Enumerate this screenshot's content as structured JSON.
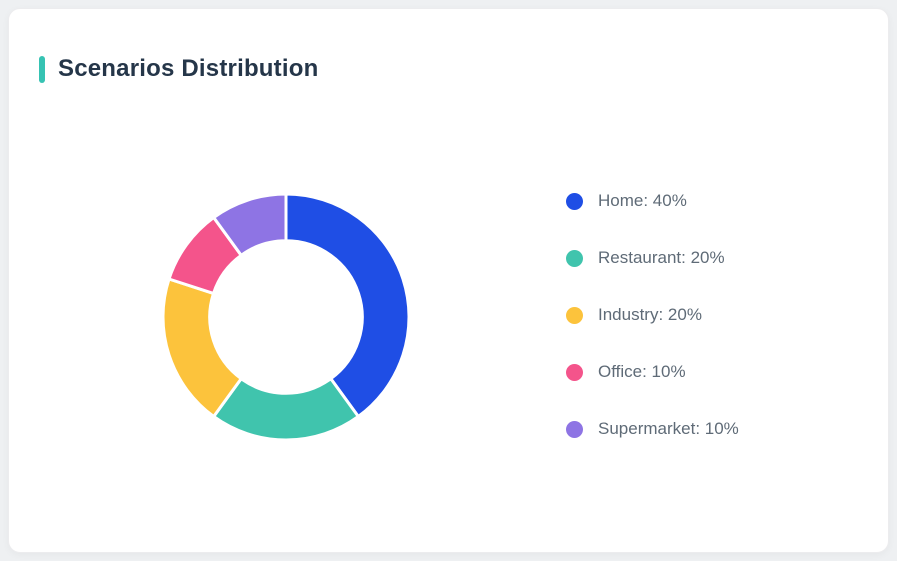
{
  "card": {
    "title": "Scenarios Distribution",
    "accent_color": "#36c3b3"
  },
  "chart_data": {
    "type": "pie",
    "subtype": "donut",
    "title": "Scenarios Distribution",
    "categories": [
      "Home",
      "Restaurant",
      "Industry",
      "Office",
      "Supermarket"
    ],
    "values": [
      40,
      20,
      20,
      10,
      10
    ],
    "unit": "%",
    "colors": [
      "#1f4ee5",
      "#40c4ad",
      "#fcc33c",
      "#f4548b",
      "#8e74e4"
    ],
    "start_angle_deg": 0,
    "direction": "clockwise",
    "inner_radius_ratio": 0.62,
    "legend_position": "right",
    "legend": [
      {
        "label": "Home: 40%",
        "color": "#1f4ee5"
      },
      {
        "label": "Restaurant: 20%",
        "color": "#40c4ad"
      },
      {
        "label": "Industry: 20%",
        "color": "#fcc33c"
      },
      {
        "label": "Office: 10%",
        "color": "#f4548b"
      },
      {
        "label": "Supermarket: 10%",
        "color": "#8e74e4"
      }
    ]
  }
}
